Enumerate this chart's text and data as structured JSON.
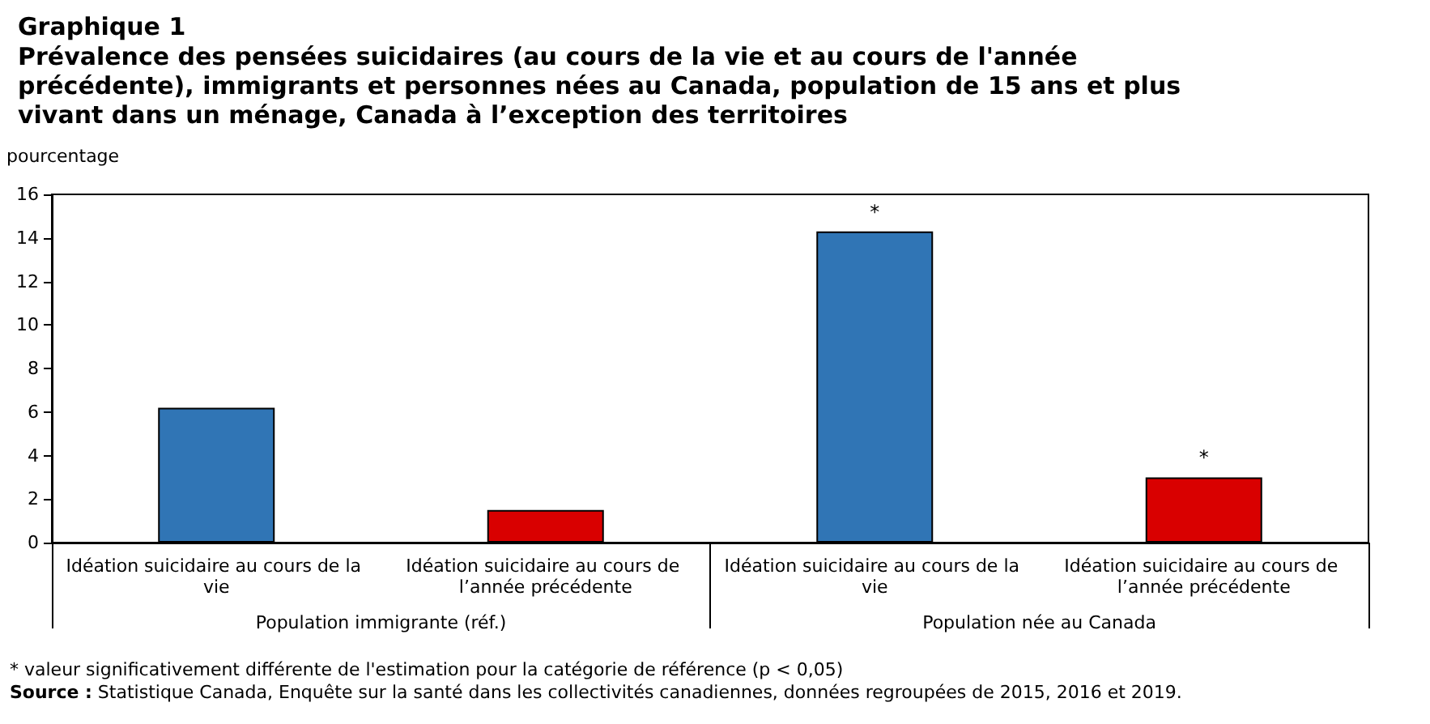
{
  "chart_data": {
    "type": "bar",
    "title": "Graphique 1",
    "subtitle": "Prévalence des pensées suicidaires (au cours de la vie et au cours de l'année précédente), immigrants et personnes nées au Canada, population de 15 ans et plus vivant dans un ménage, Canada à l’exception des territoires",
    "ylabel": "pourcentage",
    "categories": [
      "Idéation suicidaire au cours de la vie",
      "Idéation suicidaire au cours de l’année précédente",
      "Idéation suicidaire au cours de la vie",
      "Idéation suicidaire au cours de l’année précédente"
    ],
    "values": [
      6.2,
      1.5,
      14.3,
      3.0
    ],
    "colors": [
      "#3075b5",
      "#d90000",
      "#3075b5",
      "#d90000"
    ],
    "value_labels": [
      null,
      null,
      "*",
      "*"
    ],
    "ylim": [
      0,
      16
    ],
    "yticks": [
      0,
      2,
      4,
      6,
      8,
      10,
      12,
      14,
      16
    ],
    "grid": false,
    "annotations": [
      "Population immigrante (réf.)",
      "Population née au Canada",
      "* valeur significativement différente de l'estimation pour la catégorie de référence (p < 0,05)",
      "Source : Statistique Canada, Enquête sur la santé dans les collectivités canadiennes, données regroupées de 2015, 2016 et 2019."
    ]
  }
}
